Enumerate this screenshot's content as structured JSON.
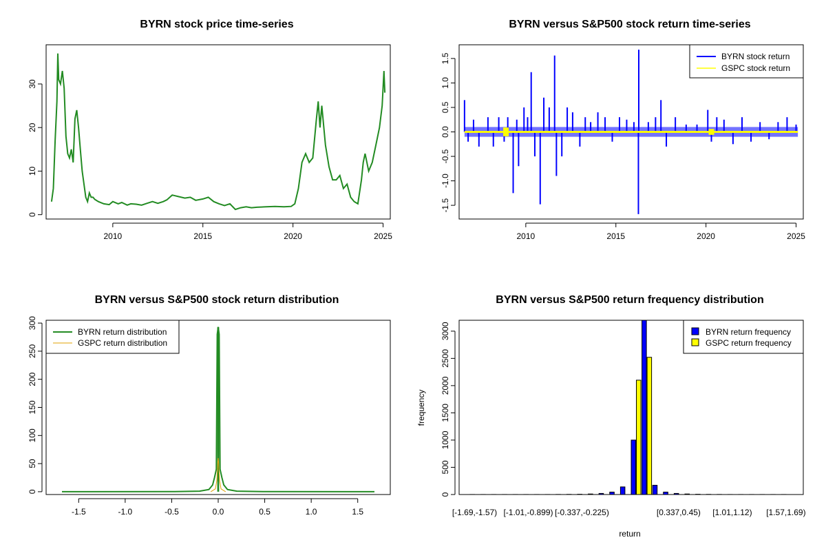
{
  "colors": {
    "price": "#228b22",
    "byrn_return": "#0000ff",
    "gspc_return": "#ffff00",
    "byrn_density": "#228b22",
    "gspc_density": "#e0a000",
    "byrn_freq": "#0000ff",
    "gspc_freq": "#ffff00"
  },
  "chart_data": [
    {
      "type": "line",
      "title": "BYRN stock price time-series",
      "xlabel": "",
      "ylabel": "",
      "xlim": [
        2006.3,
        2025.4
      ],
      "ylim": [
        -1,
        39
      ],
      "xticks": [
        2010,
        2015,
        2020,
        2025
      ],
      "xtick_labels": [
        "2010",
        "2015",
        "2020",
        "2025"
      ],
      "yticks": [
        0,
        10,
        20,
        30
      ],
      "ytick_labels": [
        "0",
        "10",
        "20",
        "30"
      ],
      "series": [
        {
          "x": [
            2006.6,
            2006.7,
            2006.8,
            2006.9,
            2006.95,
            2007.0,
            2007.1,
            2007.2,
            2007.3,
            2007.4,
            2007.5,
            2007.6,
            2007.7,
            2007.8,
            2007.9,
            2008.0,
            2008.1,
            2008.2,
            2008.3,
            2008.4,
            2008.5,
            2008.6,
            2008.7,
            2008.8,
            2008.9,
            2009.0,
            2009.2,
            2009.5,
            2009.8,
            2010.0,
            2010.3,
            2010.5,
            2010.8,
            2011.0,
            2011.3,
            2011.6,
            2011.9,
            2012.2,
            2012.5,
            2012.8,
            2013.0,
            2013.3,
            2013.6,
            2014.0,
            2014.3,
            2014.6,
            2015.0,
            2015.3,
            2015.6,
            2015.9,
            2016.2,
            2016.5,
            2016.8,
            2017.1,
            2017.4,
            2017.7,
            2018.0,
            2018.5,
            2019.0,
            2019.5,
            2019.9,
            2020.1,
            2020.3,
            2020.5,
            2020.7,
            2020.9,
            2021.1,
            2021.3,
            2021.4,
            2021.5,
            2021.6,
            2021.8,
            2022.0,
            2022.2,
            2022.4,
            2022.6,
            2022.8,
            2023.0,
            2023.2,
            2023.4,
            2023.6,
            2023.8,
            2023.9,
            2024.0,
            2024.2,
            2024.4,
            2024.6,
            2024.8,
            2024.95,
            2025.05,
            2025.1
          ],
          "values": [
            3,
            6,
            17,
            26,
            37,
            31,
            30,
            33,
            29,
            18,
            14,
            13,
            15,
            12,
            22,
            24,
            20,
            15,
            10,
            7,
            4,
            3,
            5,
            4,
            4,
            3.5,
            3,
            2.5,
            2.3,
            3,
            2.5,
            2.8,
            2.2,
            2.5,
            2.4,
            2.2,
            2.6,
            3,
            2.6,
            3,
            3.4,
            4.5,
            4.2,
            3.8,
            4,
            3.3,
            3.6,
            4,
            3,
            2.5,
            2.1,
            2.5,
            1.2,
            1.6,
            1.8,
            1.6,
            1.7,
            1.8,
            1.9,
            1.8,
            1.9,
            2.5,
            6,
            12,
            14,
            12,
            13,
            22,
            26,
            20,
            25,
            16,
            11,
            8,
            8,
            9,
            6,
            7,
            4,
            3,
            2.5,
            8,
            12,
            14,
            10,
            12,
            16,
            20,
            25,
            33,
            28
          ]
        }
      ]
    },
    {
      "type": "line",
      "title": "BYRN versus S&P500 stock return time-series",
      "xlabel": "",
      "ylabel": "",
      "xlim": [
        2006.3,
        2025.4
      ],
      "ylim": [
        -1.78,
        1.78
      ],
      "xticks": [
        2010,
        2015,
        2020,
        2025
      ],
      "xtick_labels": [
        "2010",
        "2015",
        "2020",
        "2025"
      ],
      "yticks": [
        -1.5,
        -1.0,
        -0.5,
        0.0,
        0.5,
        1.0,
        1.5
      ],
      "ytick_labels": [
        "-1.5",
        "-1.0",
        "-0.5",
        "0.0",
        "0.5",
        "1.0",
        "1.5"
      ],
      "legend_position": "top-right",
      "series": [
        {
          "name": "BYRN stock return",
          "spikes_x": [
            2006.6,
            2006.8,
            2007.1,
            2007.4,
            2007.9,
            2008.2,
            2008.5,
            2008.8,
            2009.0,
            2009.3,
            2009.5,
            2009.6,
            2009.9,
            2010.1,
            2010.3,
            2010.5,
            2010.8,
            2011.0,
            2011.3,
            2011.6,
            2011.7,
            2012.0,
            2012.3,
            2012.6,
            2013.0,
            2013.3,
            2013.6,
            2014.0,
            2014.4,
            2014.8,
            2015.2,
            2015.6,
            2016.0,
            2016.25,
            2016.27,
            2016.8,
            2017.2,
            2017.5,
            2017.8,
            2018.3,
            2018.9,
            2019.5,
            2020.1,
            2020.3,
            2020.6,
            2021.0,
            2021.5,
            2022.0,
            2022.5,
            2023.0,
            2023.5,
            2024.0,
            2024.5,
            2025.0
          ],
          "spikes_y": [
            0.65,
            -0.2,
            0.25,
            -0.3,
            0.3,
            -0.3,
            0.3,
            -0.2,
            0.3,
            -1.25,
            0.25,
            -0.7,
            0.5,
            0.3,
            1.22,
            -0.5,
            -1.48,
            0.7,
            0.5,
            1.56,
            -0.9,
            -0.5,
            0.5,
            0.4,
            -0.3,
            0.3,
            0.2,
            0.4,
            0.3,
            -0.2,
            0.3,
            0.25,
            0.2,
            -1.68,
            1.68,
            0.2,
            0.3,
            0.65,
            -0.3,
            0.3,
            0.15,
            0.15,
            0.45,
            -0.2,
            0.3,
            0.25,
            -0.25,
            0.3,
            -0.2,
            0.2,
            -0.15,
            0.2,
            0.3,
            0.15
          ],
          "band": 0.1
        },
        {
          "name": "GSPC stock return",
          "band": 0.02,
          "burst_x": [
            2008.9,
            2020.3
          ],
          "burst_y": [
            0.09,
            0.06
          ]
        }
      ]
    },
    {
      "type": "line",
      "title": "BYRN versus S&P500 stock return distribution",
      "xlabel": "",
      "ylabel": "",
      "xlim": [
        -1.85,
        1.85
      ],
      "ylim": [
        -5,
        305
      ],
      "xticks": [
        -1.5,
        -1.0,
        -0.5,
        0.0,
        0.5,
        1.0,
        1.5
      ],
      "xtick_labels": [
        "-1.5",
        "-1.0",
        "-0.5",
        "0.0",
        "0.5",
        "1.0",
        "1.5"
      ],
      "yticks": [
        0,
        50,
        100,
        150,
        200,
        250,
        300
      ],
      "ytick_labels": [
        "0",
        "50",
        "100",
        "150",
        "200",
        "250",
        "300"
      ],
      "legend_position": "top-left",
      "series": [
        {
          "name": "BYRN return distribution",
          "x": [
            -1.68,
            -0.5,
            -0.2,
            -0.1,
            -0.06,
            -0.04,
            -0.02,
            -0.01,
            0.0,
            0.01,
            0.02,
            0.04,
            0.06,
            0.1,
            0.2,
            0.5,
            1.68
          ],
          "values": [
            0,
            0.2,
            1,
            4,
            12,
            25,
            40,
            280,
            293,
            280,
            40,
            25,
            12,
            4,
            1,
            0.2,
            0
          ]
        },
        {
          "name": "GSPC return distribution",
          "x": [
            -0.08,
            -0.03,
            -0.015,
            -0.005,
            0.0,
            0.005,
            0.015,
            0.03,
            0.08
          ],
          "values": [
            0,
            5,
            20,
            50,
            60,
            50,
            20,
            5,
            0
          ]
        }
      ]
    },
    {
      "type": "bar",
      "title": "BYRN versus S&P500 return frequency distribution",
      "xlabel": "return",
      "ylabel": "frequency",
      "ylim": [
        0,
        3200
      ],
      "yticks": [
        0,
        500,
        1000,
        1500,
        2000,
        2500,
        3000
      ],
      "ytick_labels": [
        "0",
        "500",
        "1000",
        "1500",
        "2000",
        "2500",
        "3000"
      ],
      "visible_category_labels": [
        "[-1.69,-1.57)",
        "[-1.01,-0.899)",
        "[-0.337,-0.225)",
        "[0.337,0.45)",
        "[1.01,1.12)",
        "[1.57,1.69)"
      ],
      "legend_position": "top-right",
      "series": [
        {
          "name": "BYRN return frequency",
          "values": [
            1,
            1,
            1,
            1,
            1,
            1,
            1,
            1,
            2,
            3,
            5,
            10,
            20,
            45,
            140,
            1000,
            3200,
            170,
            45,
            20,
            10,
            5,
            3,
            2,
            1,
            1,
            1,
            1,
            1,
            1
          ]
        },
        {
          "name": "GSPC return frequency",
          "values": [
            0,
            0,
            0,
            0,
            0,
            0,
            0,
            0,
            0,
            0,
            0,
            0,
            0,
            0,
            0,
            2100,
            2520,
            0,
            0,
            0,
            0,
            0,
            0,
            0,
            0,
            0,
            0,
            0,
            0,
            0
          ]
        }
      ]
    }
  ]
}
